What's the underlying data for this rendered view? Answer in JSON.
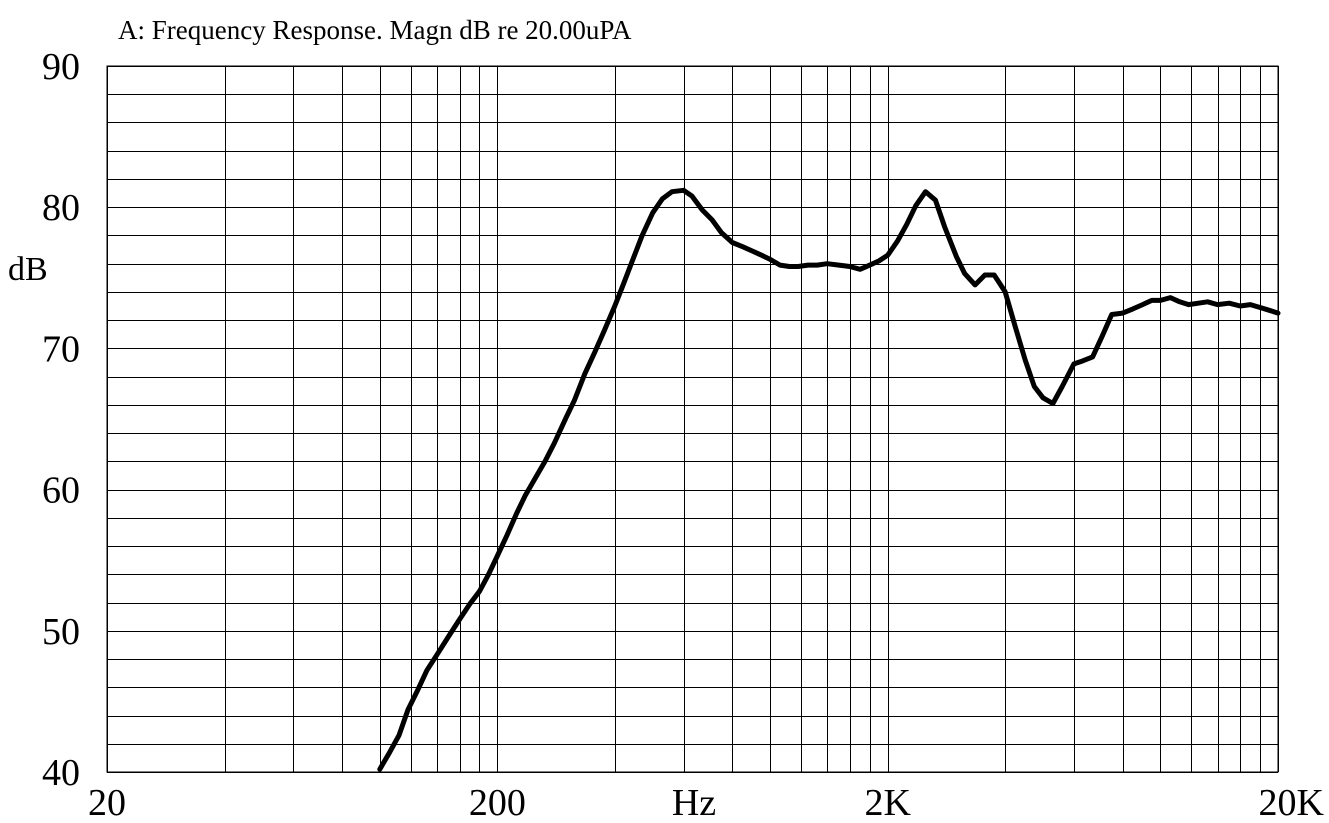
{
  "chart_data": {
    "type": "line",
    "title": "A: Frequency Response. Magn dB re 20.00uPA",
    "xlabel": "Hz",
    "ylabel": "dB",
    "x_scale": "log",
    "xlim": [
      20,
      20000
    ],
    "ylim": [
      40,
      90
    ],
    "x_tick_labels": [
      {
        "value": 20,
        "label": "20"
      },
      {
        "value": 200,
        "label": "200"
      },
      {
        "value": 2000,
        "label": "2K"
      },
      {
        "value": 20000,
        "label": "20K"
      }
    ],
    "y_tick_labels": [
      {
        "value": 40,
        "label": "40"
      },
      {
        "value": 50,
        "label": "50"
      },
      {
        "value": 60,
        "label": "60"
      },
      {
        "value": 70,
        "label": "70"
      },
      {
        "value": 80,
        "label": "80"
      },
      {
        "value": 90,
        "label": "90"
      }
    ],
    "grid": true,
    "minor_y_step": 2,
    "series": [
      {
        "color": "#000000",
        "x": [
          100,
          106,
          112,
          118,
          125,
          132,
          140,
          150,
          160,
          170,
          180,
          190,
          200,
          212,
          224,
          236,
          250,
          265,
          280,
          300,
          315,
          335,
          355,
          375,
          400,
          420,
          445,
          470,
          500,
          530,
          560,
          600,
          630,
          670,
          710,
          750,
          800,
          850,
          900,
          950,
          1000,
          1060,
          1120,
          1180,
          1250,
          1320,
          1400,
          1500,
          1600,
          1700,
          1800,
          1900,
          2000,
          2120,
          2240,
          2360,
          2500,
          2650,
          2800,
          3000,
          3150,
          3350,
          3550,
          3750,
          4000,
          4250,
          4500,
          4750,
          5000,
          5300,
          5600,
          6000,
          6300,
          6700,
          7100,
          7500,
          8000,
          8500,
          9000,
          9500,
          10000,
          10600,
          11200,
          11800,
          12500,
          13200,
          14000,
          15000,
          16000,
          17000,
          18000,
          19000,
          20000
        ],
        "y": [
          40.2,
          41.4,
          42.6,
          44.4,
          45.8,
          47.2,
          48.3,
          49.6,
          50.8,
          51.9,
          52.8,
          54.0,
          55.3,
          56.8,
          58.3,
          59.6,
          60.8,
          62.0,
          63.3,
          65.1,
          66.3,
          68.2,
          69.7,
          71.2,
          73.0,
          74.5,
          76.3,
          78.0,
          79.6,
          80.6,
          81.1,
          81.2,
          80.8,
          79.8,
          79.1,
          78.2,
          77.5,
          77.2,
          76.9,
          76.6,
          76.3,
          75.9,
          75.8,
          75.8,
          75.9,
          75.9,
          76.0,
          75.9,
          75.8,
          75.6,
          75.9,
          76.2,
          76.6,
          77.6,
          78.8,
          80.1,
          81.1,
          80.5,
          78.6,
          76.5,
          75.3,
          74.5,
          75.2,
          75.2,
          74.0,
          71.5,
          69.2,
          67.3,
          66.5,
          66.1,
          67.3,
          68.9,
          69.1,
          69.4,
          70.9,
          72.4,
          72.5,
          72.8,
          73.1,
          73.4,
          73.4,
          73.6,
          73.3,
          73.1,
          73.2,
          73.3,
          73.1,
          73.2,
          73.0,
          73.1,
          72.9,
          72.7,
          72.5
        ]
      }
    ]
  }
}
